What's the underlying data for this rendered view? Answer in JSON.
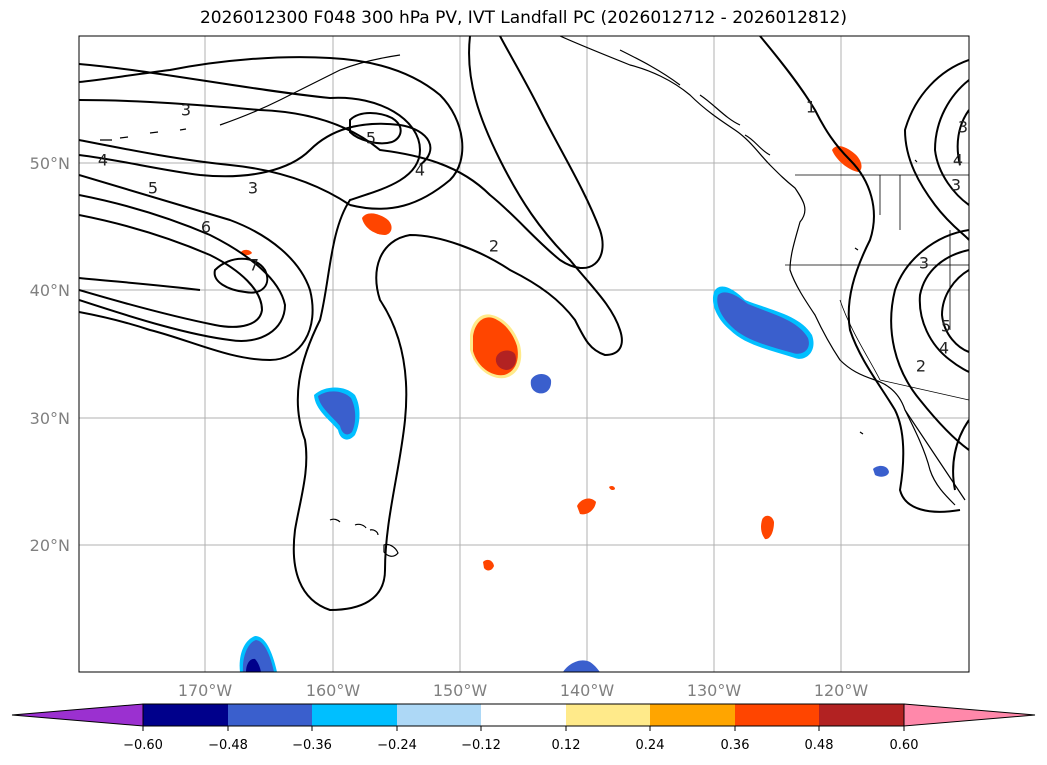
{
  "title": "2026012300 F048 300 hPa PV, IVT Landfall PC (2026012712 - 2026012812)",
  "lat_labels": [
    "50°N",
    "40°N",
    "30°N",
    "20°N"
  ],
  "lon_labels": [
    "170°W",
    "160°W",
    "150°W",
    "140°W",
    "130°W",
    "120°W"
  ],
  "pv_contour_labels": [
    "3",
    "4",
    "5",
    "3",
    "6",
    "7",
    "5",
    "4",
    "2",
    "1",
    "3",
    "4",
    "3",
    "5",
    "4",
    "2",
    "3"
  ],
  "colorbar": {
    "ticks": [
      "−0.60",
      "−0.48",
      "−0.36",
      "−0.24",
      "−0.12",
      "0.12",
      "0.24",
      "0.36",
      "0.48",
      "0.60"
    ],
    "colors": [
      "#9b30d0",
      "#00008b",
      "#3a5fcd",
      "#00bfff",
      "#add8f6",
      "#ffffff",
      "#ffea8a",
      "#ffa500",
      "#ff4500",
      "#b22222",
      "#ff88aa"
    ]
  }
}
